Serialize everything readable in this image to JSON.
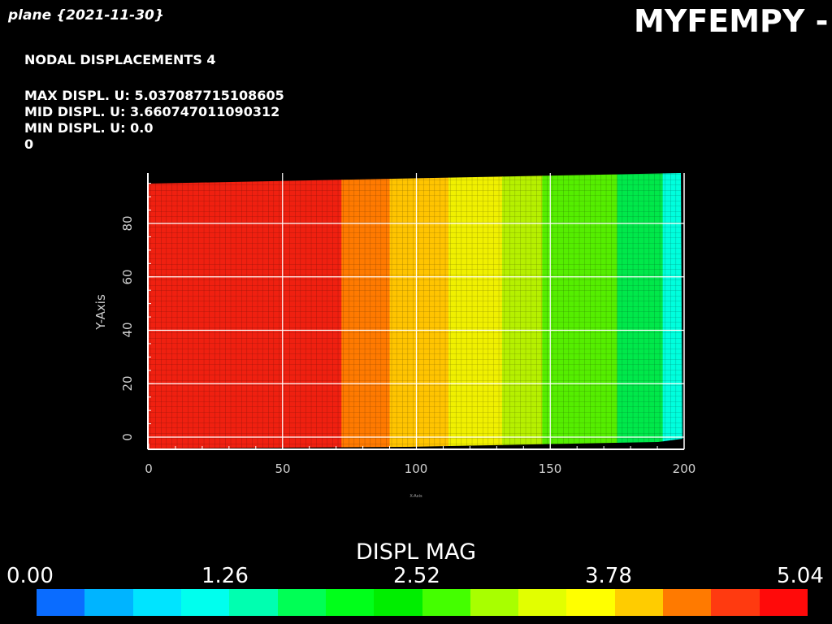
{
  "header": {
    "subtitle": "plane {2021-11-30}",
    "app_title": "MYFEMPY - v"
  },
  "info": {
    "heading": "NODAL DISPLACEMENTS 4",
    "lines": [
      "MAX DISPL. U: 5.037087715108605",
      "MID DISPL. U: 3.660747011090312",
      "MIN DISPL. U: 0.0",
      "0"
    ]
  },
  "plot": {
    "x_ticks": [
      "0",
      "50",
      "100",
      "150",
      "200"
    ],
    "y_ticks": [
      "0",
      "20",
      "40",
      "60",
      "80"
    ],
    "y_label": "Y-Axis",
    "x_label": "X-Axis",
    "x_range": [
      0,
      200
    ],
    "y_range": [
      0,
      100
    ],
    "grid": true
  },
  "colorbar": {
    "title": "DISPL MAG",
    "ticks": [
      "0.00",
      "1.26",
      "2.52",
      "3.78",
      "5.04"
    ],
    "range": [
      0.0,
      5.04
    ],
    "colors": [
      "#0a6cff",
      "#00b4ff",
      "#00e4ff",
      "#00ffee",
      "#00ffb0",
      "#00ff55",
      "#00ff1a",
      "#00ee00",
      "#44ff00",
      "#a8ff00",
      "#e2ff00",
      "#ffff00",
      "#ffcc00",
      "#ff7a00",
      "#ff3a10",
      "#ff0a0a"
    ]
  },
  "contour_bands": [
    {
      "x_from": 0,
      "x_to": 72,
      "color": "#f02010"
    },
    {
      "x_from": 72,
      "x_to": 90,
      "color": "#ff7a00"
    },
    {
      "x_from": 90,
      "x_to": 112,
      "color": "#ffc400"
    },
    {
      "x_from": 112,
      "x_to": 132,
      "color": "#f0f000"
    },
    {
      "x_from": 132,
      "x_to": 147,
      "color": "#b6f000"
    },
    {
      "x_from": 147,
      "x_to": 175,
      "color": "#55ee00"
    },
    {
      "x_from": 175,
      "x_to": 192,
      "color": "#00e84a"
    },
    {
      "x_from": 192,
      "x_to": 200,
      "color": "#00ffdd"
    }
  ]
}
